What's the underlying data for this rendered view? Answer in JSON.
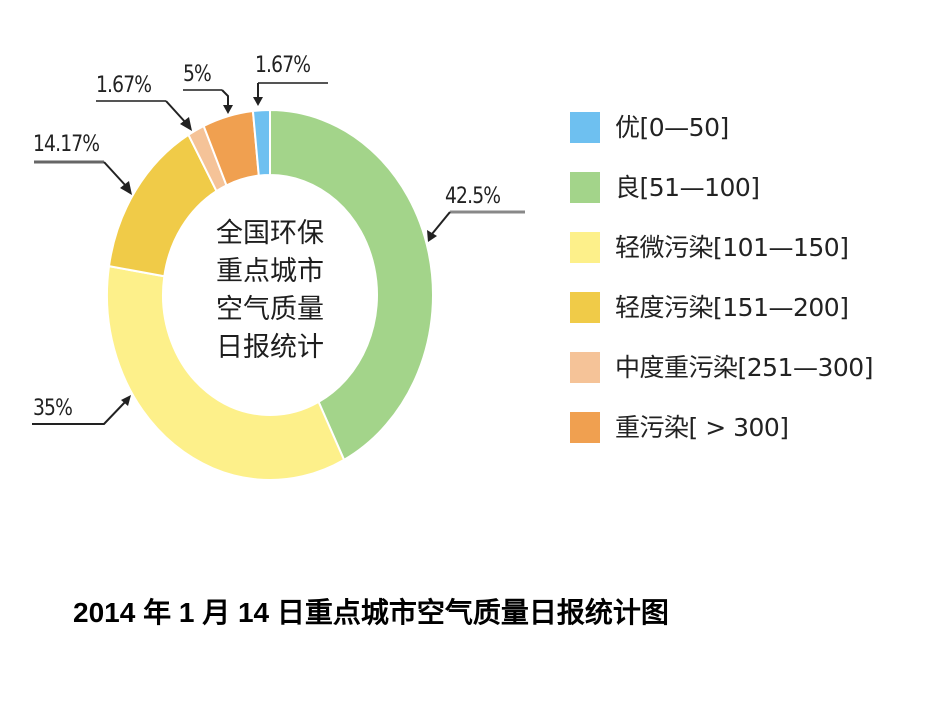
{
  "chart_data": {
    "type": "pie",
    "variant": "donut",
    "title": "2014 年 1 月 14 日重点城市空气质量日报统计图",
    "center_label": [
      "全国环保",
      "重点城市",
      "空气质量",
      "日报统计"
    ],
    "categories": [
      "优[0—50]",
      "良[51—100]",
      "轻微污染[101—150]",
      "轻度污染[151—200]",
      "中度重污染[251—300]",
      "重污染[ > 300]"
    ],
    "values": [
      1.67,
      42.5,
      35,
      14.17,
      1.67,
      5
    ],
    "value_labels": [
      "1.67%",
      "42.5%",
      "35%",
      "14.17%",
      "1.67%",
      "5%"
    ],
    "colors": [
      "#6EC0F0",
      "#A3D48A",
      "#FDF08A",
      "#F0CB48",
      "#F5C398",
      "#F0A050"
    ],
    "unit": "%",
    "legend_position": "right"
  },
  "labels": {
    "you": "1.67%",
    "liang": "42.5%",
    "qingwei": "35%",
    "qingdu": "14.17%",
    "zhongdu": "1.67%",
    "zhong": "5%"
  },
  "center": {
    "line1": "全国环保",
    "line2": "重点城市",
    "line3": "空气质量",
    "line4": "日报统计"
  },
  "legend": {
    "items": [
      {
        "label": "优[0—50]",
        "color": "#6EC0F0"
      },
      {
        "label": "良[51—100]",
        "color": "#A3D48A"
      },
      {
        "label": "轻微污染[101—150]",
        "color": "#FDF08A"
      },
      {
        "label": "轻度污染[151—200]",
        "color": "#F0CB48"
      },
      {
        "label": "中度重污染[251—300]",
        "color": "#F5C398"
      },
      {
        "label": "重污染[ > 300]",
        "color": "#F0A050"
      }
    ]
  },
  "caption": "2014 年 1 月 14 日重点城市空气质量日报统计图"
}
